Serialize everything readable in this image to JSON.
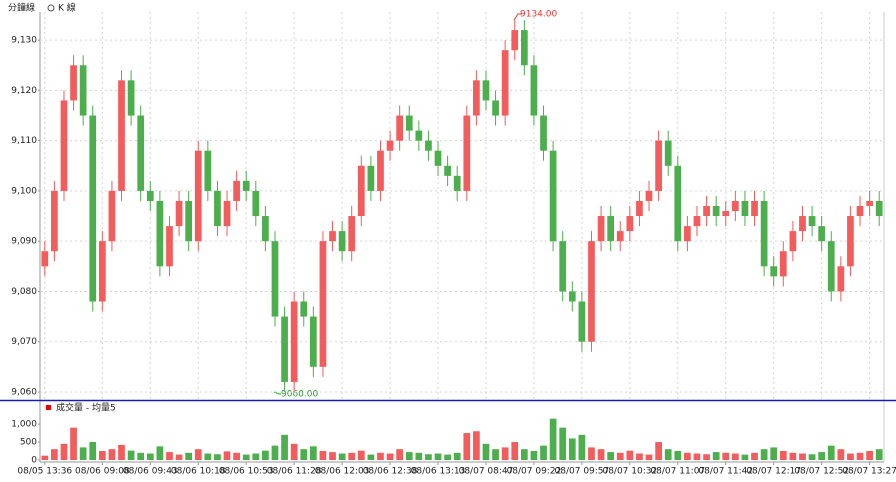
{
  "chart_data": [
    {
      "type": "candlestick",
      "tabs": [
        "分鐘線",
        "K 線"
      ],
      "annotations": [
        "9134.00",
        "9060.00"
      ],
      "up_color": "#f25c5c",
      "down_color": "#4cae4c",
      "grid": true,
      "ylim": [
        9058.4,
        9135.6
      ],
      "yticks": [
        {
          "value": 9060,
          "label": "9,060"
        },
        {
          "value": 9070,
          "label": "9,070"
        },
        {
          "value": 9080,
          "label": "9,080"
        },
        {
          "value": 9090,
          "label": "9,090"
        },
        {
          "value": 9100,
          "label": "9,100"
        },
        {
          "value": 9110,
          "label": "9,110"
        },
        {
          "value": 9120,
          "label": "9,120"
        },
        {
          "value": 9130,
          "label": "9,130"
        }
      ],
      "categories": [
        "08/05 13:36",
        null,
        null,
        null,
        null,
        null,
        "08/06 09:08",
        null,
        null,
        null,
        null,
        "08/06 09:43",
        null,
        null,
        null,
        null,
        "08/06 10:18",
        null,
        null,
        null,
        null,
        "08/06 10:53",
        null,
        null,
        null,
        null,
        "08/06 11:28",
        null,
        null,
        null,
        null,
        "08/06 12:03",
        null,
        null,
        null,
        null,
        "08/06 12:38",
        null,
        null,
        null,
        null,
        "08/06 13:13",
        null,
        null,
        null,
        null,
        "08/07 08:47",
        null,
        null,
        null,
        null,
        "08/07 09:22",
        null,
        null,
        null,
        null,
        "08/07 09:57",
        null,
        null,
        null,
        null,
        "08/07 10:32",
        null,
        null,
        null,
        null,
        "08/07 11:07",
        null,
        null,
        null,
        null,
        "08/07 11:42",
        null,
        null,
        null,
        null,
        "08/07 12:17",
        null,
        null,
        null,
        null,
        "08/07 12:52",
        null,
        null,
        null,
        null,
        "08/07 13:27",
        null
      ],
      "open": [
        9085,
        9088,
        9100,
        9118,
        9125,
        9115,
        9078,
        9090,
        9100,
        9122,
        9115,
        9100,
        9098,
        9085,
        9093,
        9098,
        9090,
        9108,
        9100,
        9093,
        9098,
        9102,
        9100,
        9095,
        9090,
        9075,
        9062,
        9078,
        9075,
        9065,
        9090,
        9092,
        9088,
        9095,
        9105,
        9100,
        9108,
        9110,
        9115,
        9112,
        9110,
        9108,
        9105,
        9103,
        9100,
        9115,
        9122,
        9118,
        9115,
        9128,
        9132,
        9125,
        9115,
        9108,
        9090,
        9080,
        9078,
        9070,
        9090,
        9095,
        9090,
        9092,
        9095,
        9098,
        9100,
        9110,
        9105,
        9090,
        9093,
        9095,
        9097,
        9095,
        9096,
        9098,
        9095,
        9098,
        9085,
        9083,
        9088,
        9092,
        9095,
        9093,
        9090,
        9080,
        9085,
        9095,
        9097,
        9098
      ],
      "high": [
        9090,
        9102,
        9120,
        9127,
        9127,
        9117,
        9092,
        9102,
        9124,
        9124,
        9117,
        9102,
        9100,
        9095,
        9100,
        9100,
        9110,
        9110,
        9102,
        9100,
        9104,
        9104,
        9102,
        9097,
        9092,
        9077,
        9080,
        9080,
        9077,
        9092,
        9094,
        9094,
        9097,
        9107,
        9107,
        9110,
        9112,
        9117,
        9117,
        9114,
        9112,
        9110,
        9107,
        9105,
        9117,
        9124,
        9124,
        9120,
        9130,
        9134,
        9134,
        9127,
        9117,
        9110,
        9092,
        9082,
        9080,
        9092,
        9097,
        9097,
        9094,
        9097,
        9100,
        9102,
        9112,
        9112,
        9107,
        9095,
        9097,
        9099,
        9099,
        9098,
        9100,
        9100,
        9100,
        9100,
        9087,
        9090,
        9094,
        9097,
        9097,
        9095,
        9092,
        9087,
        9097,
        9099,
        9100,
        9100
      ],
      "low": [
        9083,
        9086,
        9098,
        9116,
        9113,
        9076,
        9076,
        9088,
        9098,
        9113,
        9098,
        9096,
        9083,
        9083,
        9091,
        9088,
        9088,
        9098,
        9091,
        9091,
        9096,
        9098,
        9093,
        9088,
        9073,
        9060,
        9060,
        9073,
        9063,
        9063,
        9088,
        9086,
        9086,
        9093,
        9098,
        9098,
        9106,
        9108,
        9110,
        9108,
        9106,
        9103,
        9101,
        9098,
        9098,
        9113,
        9116,
        9113,
        9113,
        9126,
        9123,
        9113,
        9106,
        9088,
        9078,
        9076,
        9068,
        9068,
        9088,
        9088,
        9088,
        9090,
        9093,
        9096,
        9098,
        9103,
        9088,
        9088,
        9091,
        9093,
        9093,
        9093,
        9094,
        9093,
        9093,
        9083,
        9081,
        9081,
        9086,
        9090,
        9091,
        9088,
        9078,
        9078,
        9083,
        9093,
        9095,
        9093
      ],
      "close": [
        9088,
        9100,
        9118,
        9125,
        9115,
        9078,
        9090,
        9100,
        9122,
        9115,
        9100,
        9098,
        9085,
        9093,
        9098,
        9090,
        9108,
        9100,
        9093,
        9098,
        9102,
        9100,
        9095,
        9090,
        9075,
        9062,
        9078,
        9075,
        9065,
        9090,
        9092,
        9088,
        9095,
        9105,
        9100,
        9108,
        9110,
        9115,
        9112,
        9110,
        9108,
        9105,
        9103,
        9100,
        9115,
        9122,
        9118,
        9115,
        9128,
        9132,
        9125,
        9115,
        9108,
        9090,
        9080,
        9078,
        9070,
        9090,
        9095,
        9090,
        9092,
        9095,
        9098,
        9100,
        9110,
        9105,
        9090,
        9093,
        9095,
        9097,
        9095,
        9096,
        9098,
        9095,
        9098,
        9085,
        9083,
        9088,
        9092,
        9095,
        9093,
        9090,
        9080,
        9085,
        9095,
        9097,
        9098,
        9095
      ]
    },
    {
      "type": "bar",
      "title": "成交量 - 均量5",
      "ylim": [
        0,
        1530
      ],
      "yticks": [
        0,
        500,
        {
          "value": 1000,
          "label": "1,000"
        }
      ],
      "values": [
        120,
        300,
        450,
        900,
        350,
        500,
        250,
        300,
        420,
        260,
        200,
        180,
        380,
        220,
        150,
        200,
        300,
        180,
        160,
        240,
        200,
        150,
        180,
        260,
        400,
        700,
        450,
        300,
        380,
        250,
        220,
        180,
        200,
        260,
        150,
        200,
        180,
        300,
        220,
        200,
        160,
        180,
        150,
        200,
        750,
        800,
        450,
        300,
        350,
        500,
        300,
        250,
        400,
        1150,
        900,
        600,
        700,
        350,
        300,
        220,
        200,
        260,
        180,
        150,
        500,
        300,
        250,
        200,
        180,
        160,
        220,
        200,
        180,
        150,
        200,
        300,
        350,
        250,
        200,
        180,
        160,
        220,
        400,
        300,
        180,
        200,
        250,
        300
      ]
    }
  ]
}
